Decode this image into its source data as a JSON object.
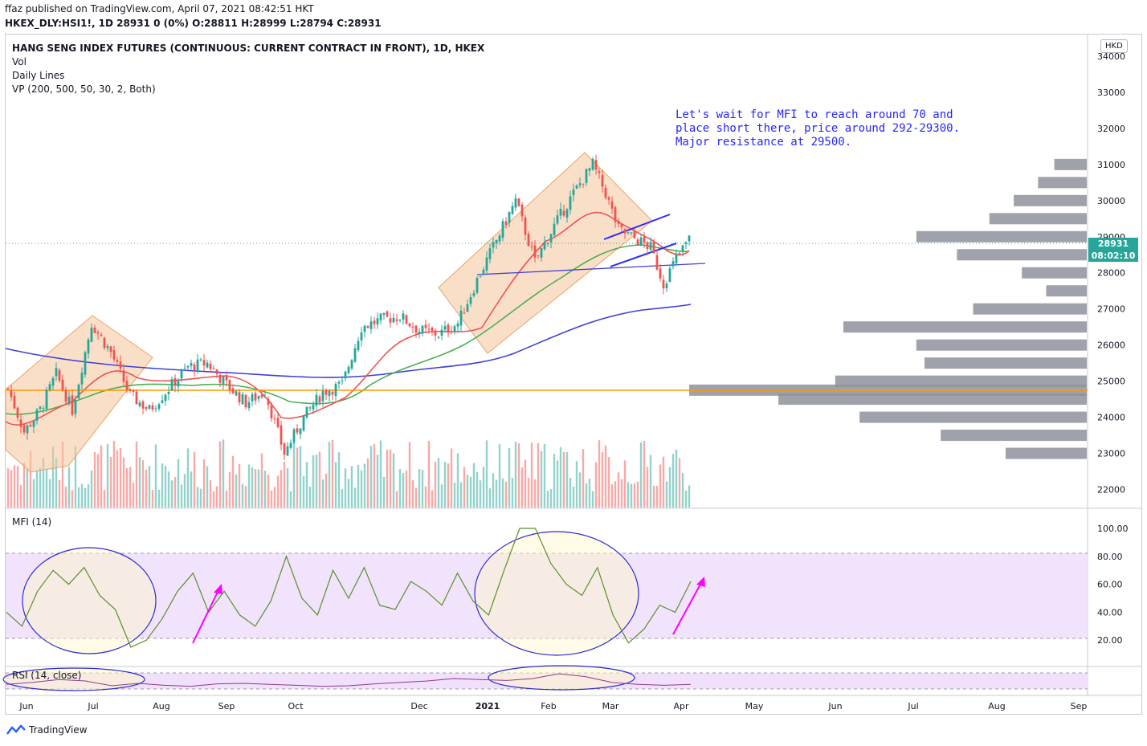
{
  "header": {
    "publisher_line": "ffaz published on TradingView.com, April 07, 2021 08:42:51 HKT",
    "symbol_line": "HKEX_DLY:HSI1!, 1D  28931 0 (0%) O:28811 H:28999 L:28794 C:28931"
  },
  "legend": {
    "title": "HANG SENG INDEX FUTURES (CONTINUOUS: CURRENT CONTRACT IN FRONT), 1D, HKEX",
    "vol": "Vol",
    "daily_lines": "Daily Lines",
    "vp": "VP (200, 500, 50, 30, 2, Both)",
    "mfi": "MFI (14)",
    "rsi": "RSI (14, close)"
  },
  "currency_badge": "HKD",
  "last_price": {
    "value": "28931",
    "countdown": "08:02:10",
    "color": "#26a69a"
  },
  "annotation": {
    "lines": [
      "Let's wait for MFI to reach around 70 and",
      "place short there, price around 292-29300.",
      "Major resistance at 29500."
    ],
    "color": "#2525ff"
  },
  "footer": {
    "brand": "TradingView"
  },
  "colors": {
    "up": "#26a69a",
    "down": "#ef5350",
    "ema_fast": "#ef5350",
    "ema_mid": "#4caf50",
    "ma_slow": "#3f3fd8",
    "support": "#ff9800",
    "mfi_band": "#f0e0fb",
    "mfi_line": "#5a8f29"
  },
  "chart_data": [
    {
      "type": "candlestick",
      "title": "HANG SENG INDEX FUTURES (CONTINUOUS: CURRENT CONTRACT IN FRONT), 1D, HKEX",
      "x_ticks": [
        "Jun",
        "Jul",
        "Aug",
        "Sep",
        "Oct",
        "Dec",
        "2021",
        "Feb",
        "Mar",
        "Apr",
        "May",
        "Jun",
        "Jul",
        "Aug",
        "Sep"
      ],
      "y_ticks": [
        22000,
        23000,
        24000,
        25000,
        26000,
        27000,
        28000,
        29000,
        30000,
        31000,
        32000,
        33000,
        34000
      ],
      "ylim": [
        21500,
        34600
      ],
      "close_path": [
        [
          0,
          24800
        ],
        [
          5,
          23600
        ],
        [
          10,
          24200
        ],
        [
          15,
          25200
        ],
        [
          20,
          24200
        ],
        [
          26,
          26600
        ],
        [
          32,
          25800
        ],
        [
          38,
          24600
        ],
        [
          44,
          24200
        ],
        [
          50,
          24800
        ],
        [
          56,
          25400
        ],
        [
          62,
          25500
        ],
        [
          68,
          24900
        ],
        [
          74,
          24400
        ],
        [
          80,
          24700
        ],
        [
          86,
          23000
        ],
        [
          92,
          24000
        ],
        [
          98,
          24700
        ],
        [
          104,
          24900
        ],
        [
          110,
          26500
        ],
        [
          116,
          26700
        ],
        [
          122,
          26800
        ],
        [
          128,
          26400
        ],
        [
          134,
          26300
        ],
        [
          140,
          26600
        ],
        [
          146,
          27800
        ],
        [
          152,
          28900
        ],
        [
          158,
          30000
        ],
        [
          164,
          28300
        ],
        [
          170,
          29300
        ],
        [
          176,
          30200
        ],
        [
          182,
          31000
        ],
        [
          186,
          30200
        ],
        [
          190,
          29200
        ],
        [
          196,
          28900
        ],
        [
          200,
          28700
        ],
        [
          204,
          27700
        ],
        [
          208,
          28400
        ],
        [
          212,
          28931
        ]
      ],
      "volume_profile": [
        {
          "price": 23000,
          "volume": 100
        },
        {
          "price": 23500,
          "volume": 180
        },
        {
          "price": 24000,
          "volume": 280
        },
        {
          "price": 24500,
          "volume": 380
        },
        {
          "price": 24750,
          "volume": 490
        },
        {
          "price": 25000,
          "volume": 310
        },
        {
          "price": 25500,
          "volume": 200
        },
        {
          "price": 26000,
          "volume": 210
        },
        {
          "price": 26500,
          "volume": 300
        },
        {
          "price": 27000,
          "volume": 140
        },
        {
          "price": 27500,
          "volume": 50
        },
        {
          "price": 28000,
          "volume": 80
        },
        {
          "price": 28500,
          "volume": 160
        },
        {
          "price": 29000,
          "volume": 210
        },
        {
          "price": 29500,
          "volume": 120
        },
        {
          "price": 30000,
          "volume": 90
        },
        {
          "price": 30500,
          "volume": 60
        },
        {
          "price": 31000,
          "volume": 40
        }
      ],
      "support_level": 24700
    },
    {
      "type": "line",
      "title": "MFI (14)",
      "y_ticks": [
        20,
        40,
        60,
        80,
        100
      ],
      "ylim": [
        0,
        104
      ],
      "band": [
        20,
        80
      ],
      "series": [
        {
          "name": "MFI (14)",
          "values": [
            40,
            30,
            55,
            70,
            60,
            72,
            52,
            42,
            15,
            20,
            35,
            55,
            68,
            40,
            55,
            38,
            30,
            48,
            80,
            50,
            38,
            70,
            50,
            72,
            45,
            42,
            62,
            55,
            45,
            68,
            48,
            38,
            70,
            100,
            100,
            75,
            60,
            52,
            72,
            38,
            18,
            28,
            45,
            40,
            62
          ]
        }
      ]
    },
    {
      "type": "line",
      "title": "RSI (14, close)",
      "series": [
        {
          "name": "RSI (14, close)",
          "values": [
            48,
            52,
            58,
            55,
            45,
            50,
            46,
            44,
            49,
            50,
            48,
            46,
            44,
            45,
            49,
            52,
            55,
            60,
            58,
            56,
            60,
            70,
            64,
            52,
            48,
            46,
            48
          ]
        }
      ]
    }
  ]
}
